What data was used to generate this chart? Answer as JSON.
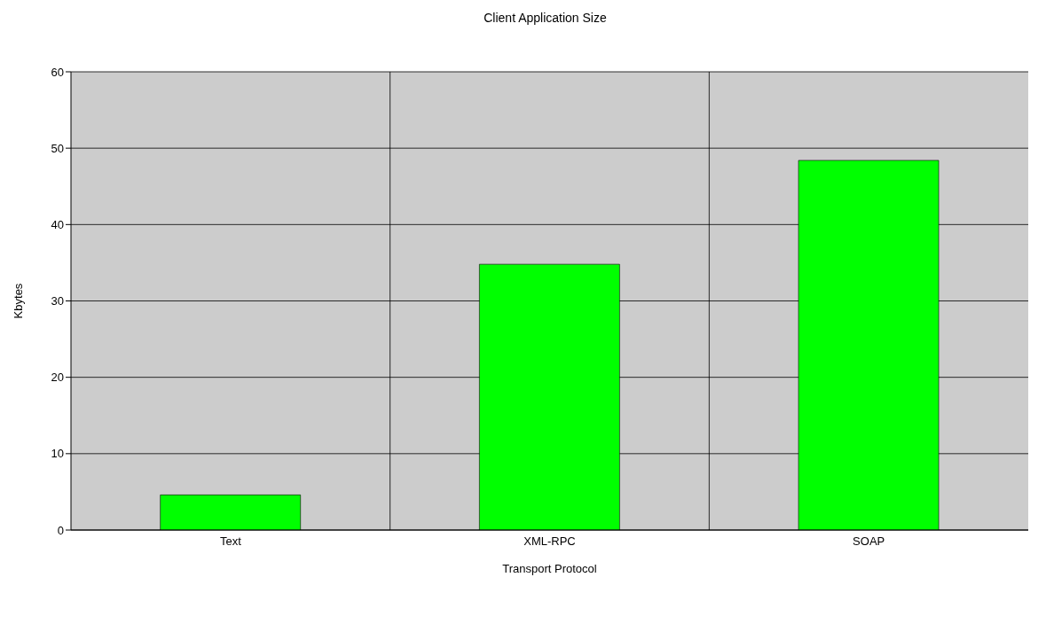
{
  "chart_data": {
    "type": "bar",
    "title": "Client Application Size",
    "xlabel": "Transport Protocol",
    "ylabel": "Kbytes",
    "categories": [
      "Text",
      "XML-RPC",
      "SOAP"
    ],
    "values": [
      4.6,
      34.8,
      48.4
    ],
    "color": "#00ff00",
    "ylim": [
      0,
      60
    ],
    "yticks": [
      0,
      10,
      20,
      30,
      40,
      50,
      60
    ],
    "grid": true
  }
}
